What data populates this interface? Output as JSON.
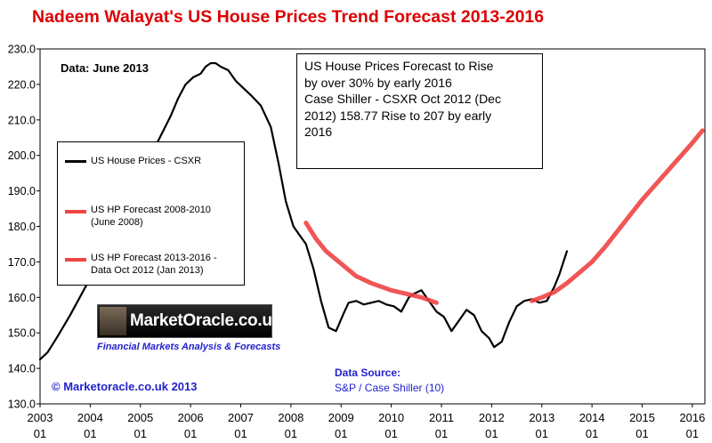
{
  "chart_data": {
    "type": "line",
    "title": "Nadeem Walayat's US House Prices Trend  Forecast 2013-2016",
    "data_date_label": "Data:  June 2013",
    "annotation": [
      "US House Prices Forecast to Rise",
      "by over 30% by early 2016",
      "Case Shiller - CSXR Oct 2012 (Dec",
      "2012) 158.77 Rise to 207 by early",
      "2016"
    ],
    "ylim": [
      130.0,
      230.0
    ],
    "xlim": [
      2003.0,
      2016.25
    ],
    "y_ticks": [
      "130.0",
      "140.0",
      "150.0",
      "160.0",
      "170.0",
      "180.0",
      "190.0",
      "200.0",
      "210.0",
      "220.0",
      "230.0"
    ],
    "y_tick_values": [
      130,
      140,
      150,
      160,
      170,
      180,
      190,
      200,
      210,
      220,
      230
    ],
    "x_ticks": [
      {
        "year": "2003",
        "month": "01",
        "value": 2003
      },
      {
        "year": "2004",
        "month": "01",
        "value": 2004
      },
      {
        "year": "2005",
        "month": "01",
        "value": 2005
      },
      {
        "year": "2006",
        "month": "01",
        "value": 2006
      },
      {
        "year": "2007",
        "month": "01",
        "value": 2007
      },
      {
        "year": "2008",
        "month": "01",
        "value": 2008
      },
      {
        "year": "2009",
        "month": "01",
        "value": 2009
      },
      {
        "year": "2010",
        "month": "01",
        "value": 2010
      },
      {
        "year": "2011",
        "month": "01",
        "value": 2011
      },
      {
        "year": "2012",
        "month": "01",
        "value": 2012
      },
      {
        "year": "2013",
        "month": "01",
        "value": 2013
      },
      {
        "year": "2014",
        "month": "01",
        "value": 2014
      },
      {
        "year": "2015",
        "month": "01",
        "value": 2015
      },
      {
        "year": "2016",
        "month": "01",
        "value": 2016
      }
    ],
    "grid": true,
    "series": [
      {
        "name": "US House Prices - CSXR",
        "color": "#000000",
        "x": [
          2003.0,
          2003.15,
          2003.35,
          2003.6,
          2003.85,
          2004.1,
          2004.35,
          2004.6,
          2004.85,
          2005.1,
          2005.35,
          2005.6,
          2005.75,
          2005.9,
          2006.05,
          2006.2,
          2006.3,
          2006.4,
          2006.5,
          2006.6,
          2006.75,
          2006.9,
          2007.05,
          2007.2,
          2007.4,
          2007.6,
          2007.75,
          2007.9,
          2008.05,
          2008.15,
          2008.3,
          2008.45,
          2008.6,
          2008.75,
          2008.9,
          2009.05,
          2009.15,
          2009.3,
          2009.45,
          2009.6,
          2009.75,
          2009.9,
          2010.05,
          2010.2,
          2010.35,
          2010.45,
          2010.6,
          2010.75,
          2010.9,
          2011.05,
          2011.2,
          2011.35,
          2011.5,
          2011.65,
          2011.8,
          2011.95,
          2012.05,
          2012.2,
          2012.35,
          2012.5,
          2012.65,
          2012.8,
          2012.95,
          2013.1,
          2013.25,
          2013.35,
          2013.5
        ],
        "y": [
          142.5,
          144.5,
          149.0,
          155.0,
          161.5,
          168.0,
          174.5,
          181.5,
          189.0,
          196.5,
          204.0,
          211.0,
          216.0,
          220.0,
          222.0,
          223.0,
          225.0,
          226.0,
          226.0,
          225.0,
          224.0,
          221.0,
          219.0,
          217.0,
          214.0,
          208.0,
          198.0,
          187.0,
          180.0,
          178.0,
          175.0,
          168.0,
          159.0,
          151.5,
          150.5,
          155.5,
          158.5,
          159.0,
          158.0,
          158.5,
          159.0,
          158.0,
          157.5,
          156.0,
          160.0,
          161.0,
          162.0,
          159.0,
          156.0,
          154.5,
          150.5,
          153.5,
          156.5,
          155.0,
          150.5,
          148.5,
          146.0,
          147.5,
          153.0,
          157.5,
          159.0,
          159.5,
          158.5,
          159.0,
          163.0,
          166.5,
          173.0
        ]
      },
      {
        "name": "US HP Forecast 2008-2010",
        "name_line2": "(June 2008)",
        "color": "#ee4444",
        "x": [
          2008.3,
          2008.5,
          2008.7,
          2009.0,
          2009.3,
          2009.6,
          2010.0,
          2010.3,
          2010.6,
          2010.9
        ],
        "y": [
          181.0,
          176.5,
          173.0,
          169.5,
          166.0,
          164.0,
          162.0,
          161.0,
          160.0,
          158.5
        ]
      },
      {
        "name": "US HP Forecast 2013-2016 -",
        "name_line2": "Data Oct 2012 (Jan 2013)",
        "color": "#ee4444",
        "x": [
          2012.8,
          2013.0,
          2013.25,
          2013.5,
          2013.75,
          2014.0,
          2014.25,
          2014.5,
          2014.75,
          2015.0,
          2015.25,
          2015.5,
          2015.75,
          2016.0,
          2016.2
        ],
        "y": [
          159.0,
          160.0,
          161.5,
          164.0,
          167.0,
          170.0,
          174.0,
          178.5,
          183.0,
          187.5,
          191.5,
          195.5,
          199.5,
          203.5,
          207.0
        ]
      }
    ]
  },
  "branding": {
    "logo_text": "MarketOracle.co.uk",
    "logo_subtitle": "Financial Markets Analysis & Forecasts",
    "copyright": "© Marketoracle.co.uk  2013",
    "source_label": "Data Source:",
    "source_value": "S&P / Case Shiller (10)"
  }
}
